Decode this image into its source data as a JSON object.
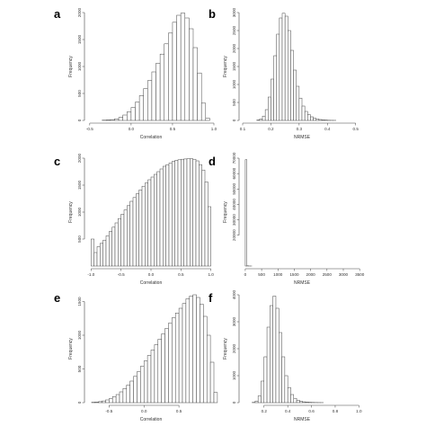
{
  "chart_data": [
    {
      "panel": "a",
      "type": "bar",
      "xlabel": "Correlation",
      "ylabel": "Frequency",
      "xlim": [
        -0.52,
        1.0
      ],
      "ylim": [
        0,
        2000
      ],
      "xticks": [
        -0.5,
        0.0,
        0.5,
        1.0
      ],
      "xtick_labels": [
        "-0.5",
        "0.0",
        "0.5",
        "1.0"
      ],
      "yticks": [
        0,
        500,
        1000,
        1500,
        2000
      ],
      "ytick_labels": [
        "0",
        "500",
        "1000",
        "1500",
        "2000"
      ],
      "bin_start": -0.35,
      "bin_width": 0.05,
      "values": [
        5,
        8,
        15,
        30,
        55,
        100,
        160,
        240,
        340,
        460,
        590,
        740,
        900,
        1060,
        1230,
        1420,
        1620,
        1820,
        1950,
        1990,
        1900,
        1700,
        1350,
        880,
        320,
        40
      ]
    },
    {
      "panel": "b",
      "type": "bar",
      "xlabel": "NRMSE",
      "ylabel": "Frequency",
      "xlim": [
        0.1,
        0.52
      ],
      "ylim": [
        0,
        3000
      ],
      "xticks": [
        0.1,
        0.2,
        0.3,
        0.4,
        0.5
      ],
      "xtick_labels": [
        "0.1",
        "0.2",
        "0.3",
        "0.4",
        "0.5"
      ],
      "yticks": [
        0,
        500,
        1000,
        1500,
        2000,
        2500,
        3000
      ],
      "ytick_labels": [
        "0",
        "500",
        "1000",
        "1500",
        "2000",
        "2500",
        "3000"
      ],
      "bin_start": 0.15,
      "bin_width": 0.01,
      "values": [
        10,
        40,
        120,
        300,
        650,
        1150,
        1800,
        2400,
        2850,
        2980,
        2900,
        2500,
        1950,
        1400,
        950,
        620,
        400,
        250,
        160,
        100,
        60,
        40,
        25,
        15,
        10,
        5,
        3,
        2
      ]
    },
    {
      "panel": "c",
      "type": "bar",
      "xlabel": "Correlation",
      "ylabel": "Frequency",
      "xlim": [
        -1.05,
        1.05
      ],
      "ylim": [
        0,
        2000
      ],
      "xticks": [
        -1.0,
        -0.5,
        0.0,
        0.5,
        1.0
      ],
      "xtick_labels": [
        "-1.0",
        "-0.5",
        "0.0",
        "0.5",
        "1.0"
      ],
      "yticks": [
        500,
        1000,
        1500,
        2000
      ],
      "ytick_labels": [
        "500",
        "1000",
        "1500",
        "2000"
      ],
      "bin_start": -1.0,
      "bin_width": 0.05,
      "values": [
        500,
        250,
        360,
        420,
        480,
        560,
        640,
        720,
        800,
        880,
        960,
        1040,
        1120,
        1200,
        1270,
        1340,
        1410,
        1480,
        1540,
        1600,
        1650,
        1700,
        1750,
        1800,
        1850,
        1880,
        1910,
        1940,
        1960,
        1970,
        1980,
        1985,
        1990,
        1990,
        1980,
        1950,
        1880,
        1780,
        1560,
        1100
      ]
    },
    {
      "panel": "d",
      "type": "bar",
      "xlabel": "NRMSE",
      "ylabel": "Frequency",
      "xlim": [
        -80,
        3550
      ],
      "ylim": [
        0,
        70000
      ],
      "xticks": [
        0,
        500,
        1000,
        1500,
        2000,
        2500,
        3000,
        3500
      ],
      "xtick_labels": [
        "0",
        "500",
        "1000",
        "1500",
        "2000",
        "2500",
        "3000",
        "3500"
      ],
      "yticks": [
        20000,
        30000,
        40000,
        50000,
        60000,
        70000
      ],
      "ytick_labels": [
        "20000",
        "30000",
        "40000",
        "50000",
        "60000",
        "70000"
      ],
      "bin_start": 0,
      "bin_width": 50,
      "values": [
        69000,
        150,
        20,
        5
      ]
    },
    {
      "panel": "e",
      "type": "bar",
      "xlabel": "Correlation",
      "ylabel": "Frequency",
      "xlim": [
        -0.8,
        1.0
      ],
      "ylim": [
        0,
        1600
      ],
      "xticks": [
        -0.5,
        0.0,
        0.5
      ],
      "xtick_labels": [
        "-0.5",
        "0.0",
        "0.5"
      ],
      "yticks": [
        0,
        500,
        1000,
        1500
      ],
      "ytick_labels": [
        "0",
        "500",
        "1000",
        "1500"
      ],
      "bin_start": -0.75,
      "bin_width": 0.05,
      "values": [
        5,
        10,
        15,
        25,
        40,
        60,
        90,
        120,
        160,
        210,
        260,
        320,
        390,
        460,
        540,
        620,
        700,
        780,
        860,
        940,
        1020,
        1100,
        1180,
        1260,
        1330,
        1400,
        1470,
        1540,
        1580,
        1600,
        1560,
        1460,
        1280,
        1000,
        600,
        150
      ]
    },
    {
      "panel": "f",
      "type": "bar",
      "xlabel": "NRMSE",
      "ylabel": "Frequency",
      "xlim": [
        0.02,
        1.02
      ],
      "ylim": [
        0,
        4000
      ],
      "xticks": [
        0.2,
        0.4,
        0.6,
        0.8,
        1.0
      ],
      "xtick_labels": [
        "0.2",
        "0.4",
        "0.6",
        "0.8",
        "1.0"
      ],
      "yticks": [
        0,
        1000,
        2000,
        3000,
        4000
      ],
      "ytick_labels": [
        "0",
        "1000",
        "2000",
        "3000",
        "4000"
      ],
      "bin_start": 0.1,
      "bin_width": 0.025,
      "values": [
        10,
        60,
        250,
        800,
        1700,
        2800,
        3600,
        3950,
        3500,
        2600,
        1700,
        1000,
        560,
        300,
        160,
        90,
        50,
        30,
        20,
        12,
        8,
        5,
        3,
        2
      ]
    }
  ]
}
